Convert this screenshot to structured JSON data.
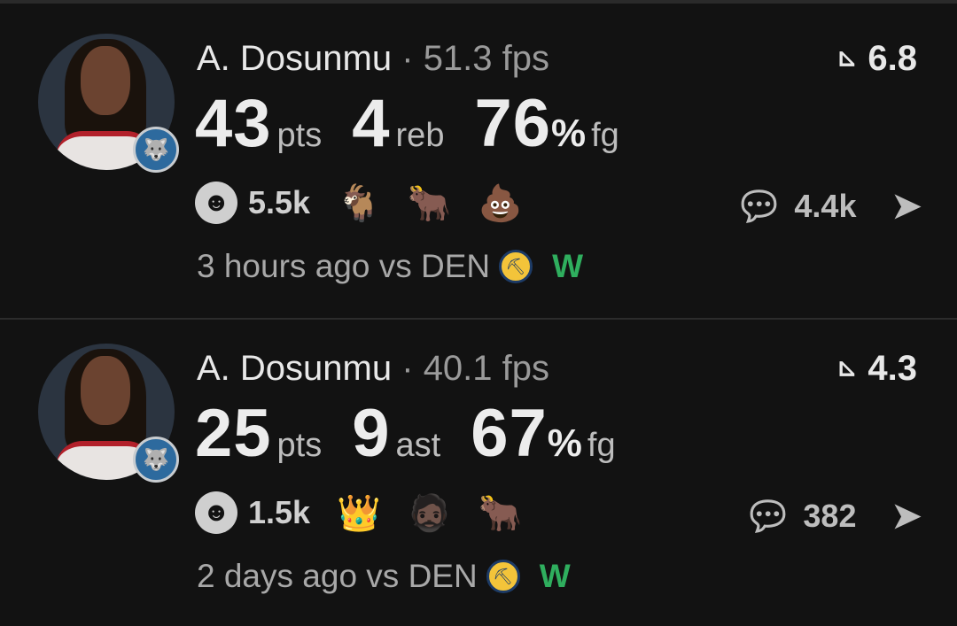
{
  "posts": [
    {
      "player": "A. Dosunmu",
      "separator": "·",
      "fps": "51.3 fps",
      "rating": "6.8",
      "stats": [
        {
          "value": "43",
          "unit": "pts"
        },
        {
          "value": "4",
          "unit": "reb"
        },
        {
          "value": "76",
          "unit": "fg",
          "symbol": "%"
        }
      ],
      "reactions_count": "5.5k",
      "emojis": [
        "🐐",
        "🐂",
        "💩"
      ],
      "comments": "4.4k",
      "time": "3 hours ago vs DEN",
      "result": "W"
    },
    {
      "player": "A. Dosunmu",
      "separator": "·",
      "fps": "40.1 fps",
      "rating": "4.3",
      "stats": [
        {
          "value": "25",
          "unit": "pts"
        },
        {
          "value": "9",
          "unit": "ast"
        },
        {
          "value": "67",
          "unit": "fg",
          "symbol": "%"
        }
      ],
      "reactions_count": "1.5k",
      "emojis": [
        "👑",
        "🧔🏿",
        "🐂"
      ],
      "comments": "382",
      "time": "2 days ago vs DEN",
      "result": "W"
    }
  ],
  "colors": {
    "background": "#121212",
    "win": "#2fae5e"
  }
}
